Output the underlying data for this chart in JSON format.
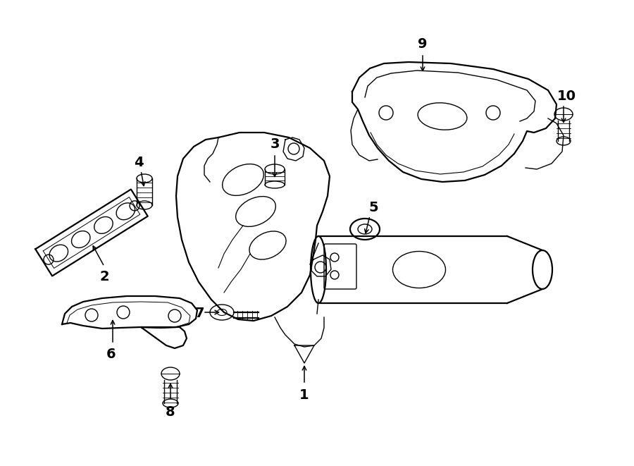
{
  "bg_color": "#ffffff",
  "line_color": "#000000",
  "lw": 1.0,
  "lw2": 1.6,
  "fig_width": 9.0,
  "fig_height": 6.61,
  "dpi": 100,
  "label_fontsize": 14
}
